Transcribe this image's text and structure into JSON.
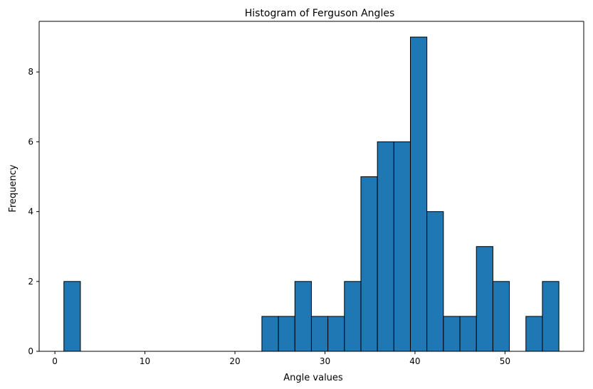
{
  "chart_data": {
    "type": "bar",
    "title": "Histogram of Ferguson Angles",
    "xlabel": "Angle values",
    "ylabel": "Frequency",
    "bin_start": 1.0,
    "bin_width": 1.833,
    "counts": [
      2,
      0,
      0,
      0,
      0,
      0,
      0,
      0,
      0,
      0,
      0,
      0,
      1,
      1,
      2,
      1,
      1,
      2,
      5,
      6,
      6,
      9,
      4,
      1,
      1,
      3,
      2,
      0,
      1,
      2
    ],
    "xlim": [
      -1.75,
      58.75
    ],
    "ylim": [
      0,
      9.45
    ],
    "xticks": [
      0,
      10,
      20,
      30,
      40,
      50
    ],
    "xtick_labels": [
      "0",
      "10",
      "20",
      "30",
      "40",
      "50"
    ],
    "yticks": [
      0,
      2,
      4,
      6,
      8
    ],
    "ytick_labels": [
      "0",
      "2",
      "4",
      "6",
      "8"
    ],
    "bar_color": "#1f77b4",
    "edge_color": "#000000",
    "grid": false
  }
}
